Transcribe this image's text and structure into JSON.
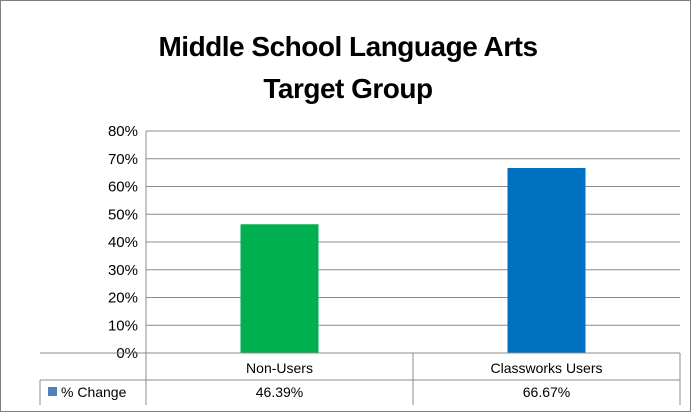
{
  "chart_data": {
    "type": "bar",
    "title": [
      "Middle School Language Arts",
      "Target Group"
    ],
    "categories": [
      "Non-Users",
      "Classworks Users"
    ],
    "series": [
      {
        "name": "% Change",
        "values": [
          46.39,
          66.67
        ],
        "labels": [
          "46.39%",
          "66.67%"
        ],
        "colors": [
          "#00b050",
          "#0070c0"
        ]
      }
    ],
    "legend_color": "#4f81bd",
    "ylim": [
      0,
      80
    ],
    "yticks": [
      "0%",
      "10%",
      "20%",
      "30%",
      "40%",
      "50%",
      "60%",
      "70%",
      "80%"
    ],
    "grid": true,
    "data_table": true
  }
}
